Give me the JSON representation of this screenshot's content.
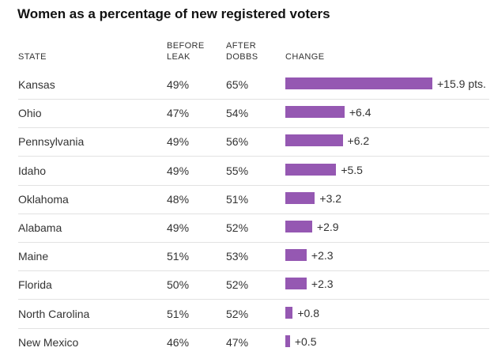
{
  "title": "Women as a percentage of new registered voters",
  "headers": {
    "state": "STATE",
    "before": [
      "BEFORE",
      "LEAK"
    ],
    "after": [
      "AFTER",
      "DOBBS"
    ],
    "change": "CHANGE"
  },
  "colors": {
    "bar": "#9558b2"
  },
  "chart_data": {
    "type": "bar",
    "orientation": "horizontal",
    "title": "Women as a percentage of new registered voters",
    "columns": [
      "STATE",
      "BEFORE LEAK",
      "AFTER DOBBS",
      "CHANGE"
    ],
    "categories": [
      "Kansas",
      "Ohio",
      "Pennsylvania",
      "Idaho",
      "Oklahoma",
      "Alabama",
      "Maine",
      "Florida",
      "North Carolina",
      "New Mexico"
    ],
    "rows": [
      {
        "state": "Kansas",
        "before": "49%",
        "after": "65%",
        "change": 15.9,
        "change_label": "+15.9 pts."
      },
      {
        "state": "Ohio",
        "before": "47%",
        "after": "54%",
        "change": 6.4,
        "change_label": "+6.4"
      },
      {
        "state": "Pennsylvania",
        "before": "49%",
        "after": "56%",
        "change": 6.2,
        "change_label": "+6.2"
      },
      {
        "state": "Idaho",
        "before": "49%",
        "after": "55%",
        "change": 5.5,
        "change_label": "+5.5"
      },
      {
        "state": "Oklahoma",
        "before": "48%",
        "after": "51%",
        "change": 3.2,
        "change_label": "+3.2"
      },
      {
        "state": "Alabama",
        "before": "49%",
        "after": "52%",
        "change": 2.9,
        "change_label": "+2.9"
      },
      {
        "state": "Maine",
        "before": "51%",
        "after": "53%",
        "change": 2.3,
        "change_label": "+2.3"
      },
      {
        "state": "Florida",
        "before": "50%",
        "after": "52%",
        "change": 2.3,
        "change_label": "+2.3"
      },
      {
        "state": "North Carolina",
        "before": "51%",
        "after": "52%",
        "change": 0.8,
        "change_label": "+0.8"
      },
      {
        "state": "New Mexico",
        "before": "46%",
        "after": "47%",
        "change": 0.5,
        "change_label": "+0.5"
      }
    ],
    "xlim": [
      0,
      15.9
    ],
    "grid": false,
    "legend": "none"
  }
}
